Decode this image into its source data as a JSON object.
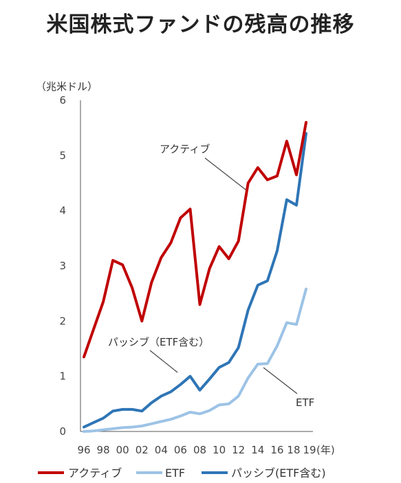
{
  "chart_data": {
    "type": "line",
    "title": "米国株式ファンドの残高の推移",
    "y_unit_label": "（兆米ドル）",
    "x_unit_label": "(年)",
    "ylim": [
      0,
      6
    ],
    "yticks": [
      "0",
      "1",
      "2",
      "3",
      "4",
      "5",
      "6"
    ],
    "x": [
      "96",
      "97",
      "98",
      "99",
      "00",
      "01",
      "02",
      "03",
      "04",
      "05",
      "06",
      "07",
      "08",
      "09",
      "10",
      "11",
      "12",
      "13",
      "14",
      "15",
      "16",
      "17",
      "18",
      "19"
    ],
    "xtick_labels": [
      "96",
      "98",
      "00",
      "02",
      "04",
      "06",
      "08",
      "10",
      "12",
      "14",
      "16",
      "18",
      "19"
    ],
    "grid": false,
    "legend_position": "bottom",
    "series": [
      {
        "name": "アクティブ",
        "color": "#c00000",
        "values": [
          1.35,
          1.85,
          2.35,
          3.1,
          3.02,
          2.6,
          2.0,
          2.7,
          3.15,
          3.42,
          3.87,
          4.03,
          2.3,
          2.95,
          3.35,
          3.13,
          3.45,
          4.5,
          4.78,
          4.56,
          4.63,
          5.26,
          4.65,
          5.6
        ]
      },
      {
        "name": "ETF",
        "color": "#9dc3e6",
        "values": [
          0.0,
          0.01,
          0.03,
          0.05,
          0.07,
          0.08,
          0.1,
          0.14,
          0.18,
          0.22,
          0.28,
          0.35,
          0.32,
          0.38,
          0.48,
          0.5,
          0.64,
          0.97,
          1.22,
          1.23,
          1.55,
          1.97,
          1.94,
          2.58
        ]
      },
      {
        "name": "パッシブ(ETF含む)",
        "color": "#2e75b6",
        "values": [
          0.08,
          0.16,
          0.24,
          0.37,
          0.4,
          0.4,
          0.37,
          0.52,
          0.64,
          0.72,
          0.85,
          1.0,
          0.75,
          0.95,
          1.16,
          1.25,
          1.52,
          2.2,
          2.65,
          2.73,
          3.27,
          4.2,
          4.1,
          5.4
        ]
      }
    ],
    "annotations": [
      {
        "text": "アクティブ",
        "series": 0
      },
      {
        "text": "パッシブ（ETF含む）",
        "series": 2
      },
      {
        "text": "ETF",
        "series": 1
      }
    ]
  }
}
